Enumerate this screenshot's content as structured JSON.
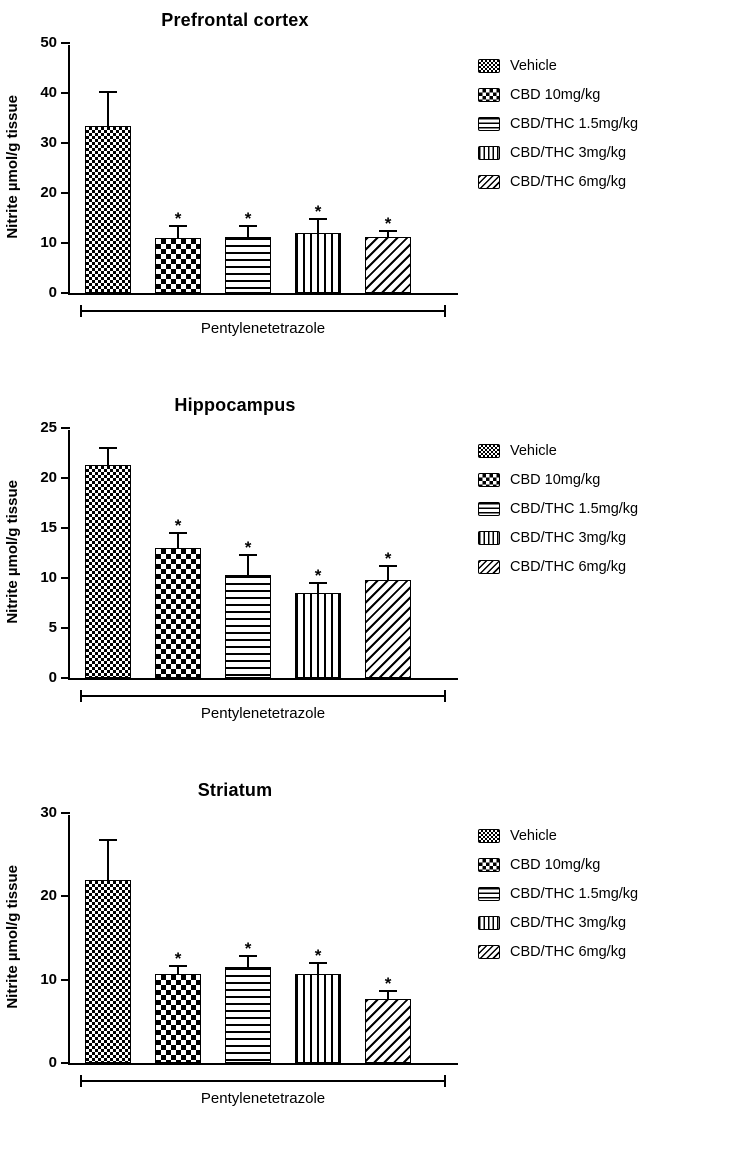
{
  "figure": {
    "significance_marker": "*"
  },
  "legend": {
    "entries": [
      {
        "label": "Vehicle",
        "pattern": "checker-fine"
      },
      {
        "label": "CBD 10mg/kg",
        "pattern": "checker"
      },
      {
        "label": "CBD/THC 1.5mg/kg",
        "pattern": "hlines"
      },
      {
        "label": "CBD/THC 3mg/kg",
        "pattern": "vlines"
      },
      {
        "label": "CBD/THC 6mg/kg",
        "pattern": "dlines"
      }
    ]
  },
  "chart_data": [
    {
      "type": "bar",
      "title": "Prefrontal cortex",
      "ylabel": "Nitrite µmol/g tissue",
      "xlabel": "Pentylenetetrazole",
      "ylim": [
        0,
        50
      ],
      "yticks": [
        0,
        10,
        20,
        30,
        40,
        50
      ],
      "grid": false,
      "legend_position": "right",
      "categories": [
        "Vehicle",
        "CBD 10mg/kg",
        "CBD/THC 1.5mg/kg",
        "CBD/THC 3mg/kg",
        "CBD/THC 6mg/kg"
      ],
      "values": [
        33.5,
        11.0,
        11.3,
        12.0,
        11.2
      ],
      "errors": [
        6.8,
        2.5,
        2.2,
        2.8,
        1.2
      ],
      "significance": [
        "",
        "*",
        "*",
        "*",
        "*"
      ]
    },
    {
      "type": "bar",
      "title": "Hippocampus",
      "ylabel": "Nitrite µmol/g tissue",
      "xlabel": "Pentylenetetrazole",
      "ylim": [
        0,
        25
      ],
      "yticks": [
        0,
        5,
        10,
        15,
        20,
        25
      ],
      "grid": false,
      "legend_position": "right",
      "categories": [
        "Vehicle",
        "CBD 10mg/kg",
        "CBD/THC 1.5mg/kg",
        "CBD/THC 3mg/kg",
        "CBD/THC 6mg/kg"
      ],
      "values": [
        21.3,
        13.0,
        10.3,
        8.5,
        9.8
      ],
      "errors": [
        1.7,
        1.5,
        2.0,
        1.0,
        1.4
      ],
      "significance": [
        "",
        "*",
        "*",
        "*",
        "*"
      ]
    },
    {
      "type": "bar",
      "title": "Striatum",
      "ylabel": "Nitrite µmol/g tissue",
      "xlabel": "Pentylenetetrazole",
      "ylim": [
        0,
        30
      ],
      "yticks": [
        0,
        10,
        20,
        30
      ],
      "grid": false,
      "legend_position": "right",
      "categories": [
        "Vehicle",
        "CBD 10mg/kg",
        "CBD/THC 1.5mg/kg",
        "CBD/THC 3mg/kg",
        "CBD/THC 6mg/kg"
      ],
      "values": [
        22.0,
        10.7,
        11.5,
        10.7,
        7.7
      ],
      "errors": [
        4.8,
        1.0,
        1.3,
        1.3,
        1.0
      ],
      "significance": [
        "",
        "*",
        "*",
        "*",
        "*"
      ]
    }
  ]
}
